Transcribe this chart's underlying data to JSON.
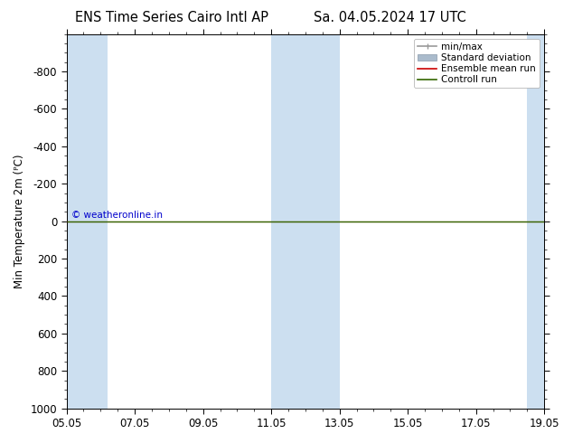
{
  "title_left": "ENS Time Series Cairo Intl AP",
  "title_right": "Sa. 04.05.2024 17 UTC",
  "ylabel": "Min Temperature 2m (ᴾC)",
  "ylim_top": -1000,
  "ylim_bottom": 1000,
  "yticks": [
    -800,
    -600,
    -400,
    -200,
    0,
    200,
    400,
    600,
    800,
    1000
  ],
  "xticks_labels": [
    "05.05",
    "07.05",
    "09.05",
    "11.05",
    "13.05",
    "15.05",
    "17.05",
    "19.05"
  ],
  "xticks_pos": [
    0,
    2,
    4,
    6,
    8,
    10,
    12,
    14
  ],
  "xlim": [
    0,
    14
  ],
  "shaded_intervals": [
    [
      0,
      1.2
    ],
    [
      6,
      8
    ],
    [
      13.5,
      14
    ]
  ],
  "shaded_color": "#ccdff0",
  "control_run_y": 0,
  "control_run_color": "#336600",
  "ensemble_mean_color": "#cc0000",
  "minmax_color": "#999999",
  "stddev_color": "#aabbcc",
  "copyright_text": "© weatheronline.in",
  "copyright_color": "#0000cc",
  "bg_color": "#ffffff",
  "plot_bg_color": "#ffffff",
  "legend_fontsize": 7.5,
  "title_fontsize": 10.5,
  "axis_fontsize": 8.5,
  "ylabel_fontsize": 8.5
}
